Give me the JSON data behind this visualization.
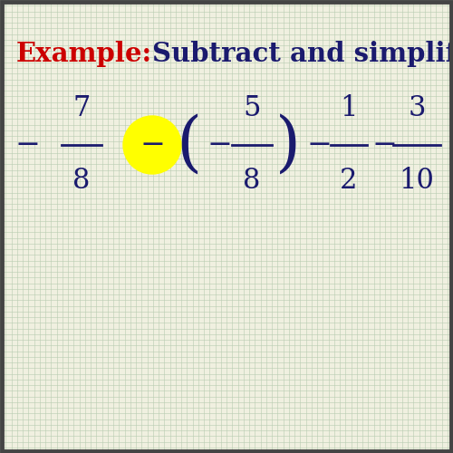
{
  "title_example": "Example:",
  "title_rest": "Subtract and simplify.",
  "bg_color": "#f0f0e0",
  "grid_color": "#b8ccb0",
  "example_color": "#cc0000",
  "math_color": "#1a1a6e",
  "highlight_color": "#ffff00",
  "border_color": "#444444"
}
